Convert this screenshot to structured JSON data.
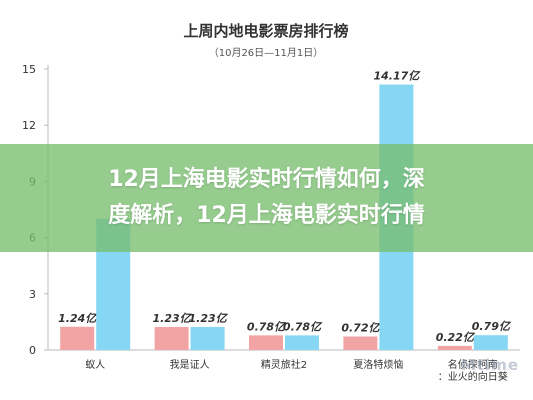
{
  "chart_data": {
    "type": "bar",
    "title": "上周内地电影票房排行榜",
    "subtitle": "（10月26日—11月1日）",
    "categories": [
      "蚁人",
      "我是证人",
      "精灵旅社2",
      "夏洛特烦恼",
      "名侦探柯南：业火的向日葵"
    ],
    "category_lines": [
      [
        "蚁人"
      ],
      [
        "我是证人"
      ],
      [
        "精灵旅社2"
      ],
      [
        "夏洛特烦恼"
      ],
      [
        "名侦探柯南",
        "：业火的向日葵"
      ]
    ],
    "series": [
      {
        "values": [
          1.24,
          1.23,
          0.78,
          0.72,
          0.22
        ],
        "labels": [
          "1.24亿",
          "1.23亿",
          "0.78亿",
          "0.72亿",
          "0.22亿"
        ]
      },
      {
        "values": [
          7.0,
          1.23,
          0.78,
          14.17,
          0.79
        ],
        "labels": [
          "",
          "1.23亿",
          "0.78亿",
          "14.17亿",
          "0.79亿"
        ]
      }
    ],
    "yticks": [
      0,
      3,
      6,
      9,
      12,
      15
    ],
    "ylim": [
      0,
      15
    ],
    "colors": {
      "series0": "#f2a3a3",
      "series1": "#86d7f3",
      "axis": "#bbbbbb",
      "text": "#333333"
    }
  },
  "banner": {
    "lines": [
      "12月上海电影实时行情如何，深",
      "度解析，12月上海电影实时行情"
    ]
  },
  "watermark": "Mtime"
}
